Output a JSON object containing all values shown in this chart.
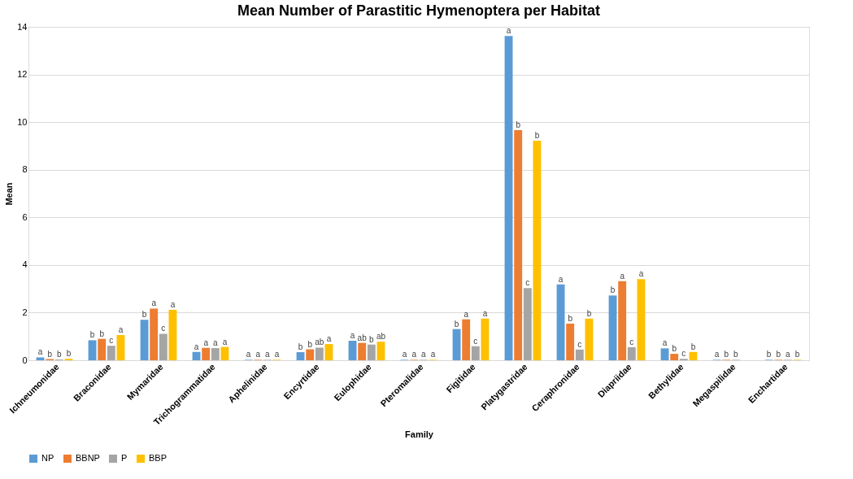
{
  "chart_data": {
    "type": "bar",
    "title": "Mean Number of Parastitic Hymenoptera per Habitat",
    "xlabel": "Family",
    "ylabel": "Mean",
    "categories": [
      "Ichneumonidae",
      "Braconidae",
      "Mymaridae",
      "Trichogrammatidae",
      "Aphelinidae",
      "Encyrtidae",
      "Eulophidae",
      "Pteromalidae",
      "Figitidae",
      "Platygastridae",
      "Ceraphronidae",
      "Diapriidae",
      "Bethylidae",
      "Megaspilidae",
      "Enchartidae"
    ],
    "series": [
      {
        "name": "NP",
        "color": "#5b9bd5",
        "values": [
          0.12,
          0.84,
          1.7,
          0.35,
          0.02,
          0.34,
          0.82,
          0.02,
          1.31,
          13.62,
          3.18,
          2.72,
          0.5,
          0.02,
          0.02
        ],
        "value_labels": [
          "a",
          "b",
          "b",
          "a",
          "a",
          "b",
          "a",
          "a",
          "b",
          "a",
          "a",
          "b",
          "a",
          "a",
          "b"
        ]
      },
      {
        "name": "BBNP",
        "color": "#ed7d31",
        "values": [
          0.05,
          0.9,
          2.17,
          0.52,
          0.02,
          0.46,
          0.73,
          0.02,
          1.72,
          9.66,
          1.54,
          3.32,
          0.27,
          0.02,
          0.02
        ],
        "value_labels": [
          "b",
          "b",
          "a",
          "a",
          "a",
          "b",
          "ab",
          "a",
          "a",
          "b",
          "b",
          "a",
          "b",
          "b",
          "b"
        ]
      },
      {
        "name": "P",
        "color": "#a5a5a5",
        "values": [
          0.03,
          0.61,
          1.11,
          0.51,
          0.02,
          0.53,
          0.66,
          0.02,
          0.59,
          3.03,
          0.45,
          0.55,
          0.06,
          0.02,
          0.02
        ],
        "value_labels": [
          "b",
          "c",
          "c",
          "a",
          "a",
          "ab",
          "b",
          "a",
          "c",
          "c",
          "c",
          "c",
          "c",
          "b",
          "a"
        ]
      },
      {
        "name": "BBP",
        "color": "#ffc000",
        "values": [
          0.06,
          1.06,
          2.12,
          0.56,
          0.02,
          0.68,
          0.78,
          0.02,
          1.75,
          9.22,
          1.75,
          3.41,
          0.35,
          null,
          0.02
        ],
        "value_labels": [
          "b",
          "a",
          "a",
          "a",
          "a",
          "a",
          "ab",
          "a",
          "a",
          "b",
          "b",
          "a",
          "b",
          null,
          "b"
        ]
      }
    ],
    "ylim": [
      0,
      14
    ],
    "yticks": [
      0,
      2,
      4,
      6,
      8,
      10,
      12,
      14
    ],
    "grid": "y",
    "legend": "bottom"
  }
}
